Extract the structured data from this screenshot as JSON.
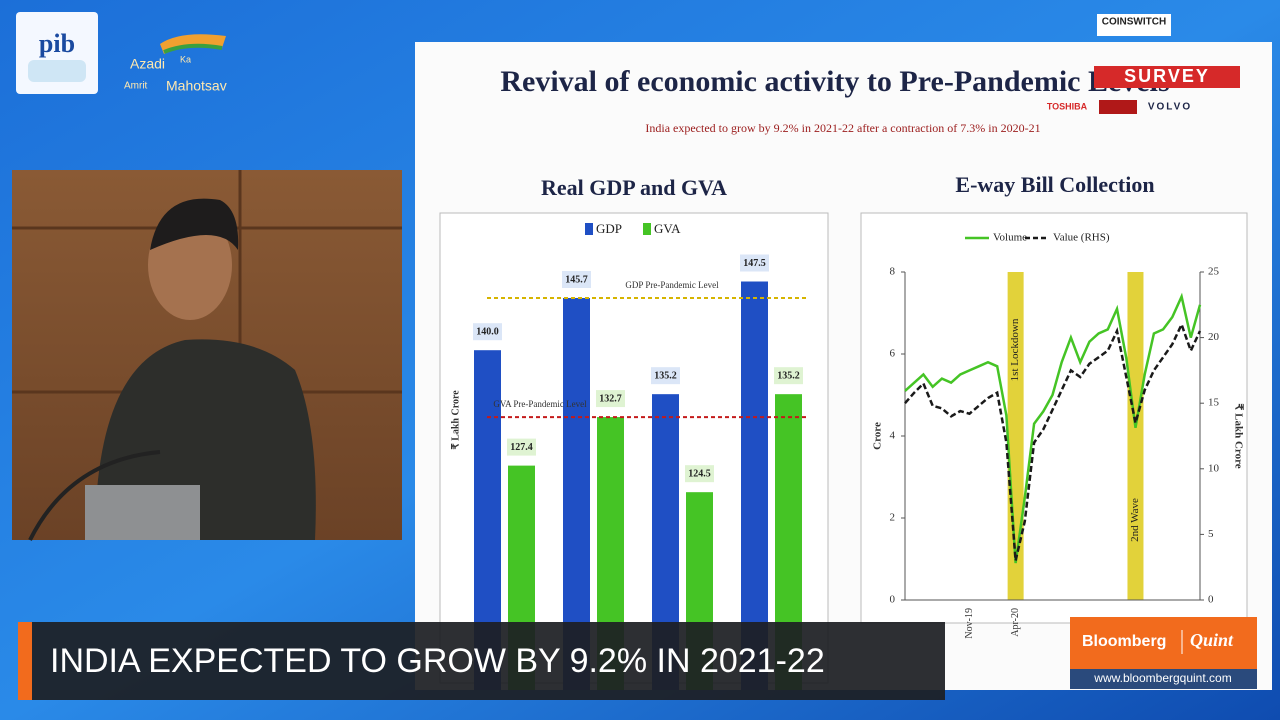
{
  "header": {
    "pib": "pib",
    "azadi": [
      "Azadi",
      "Ka",
      "Amrit",
      "Mahotsav"
    ],
    "sponsors": [
      "COINSWITCH",
      "SURVEY",
      "TOSHIBA",
      "VOLVO"
    ]
  },
  "slide": {
    "title": "Revival of economic activity to Pre-Pandemic Levels",
    "subtitle": "India expected to grow by 9.2% in 2021-22 after a contraction of 7.3% in 2020-21"
  },
  "chart_data": [
    {
      "type": "bar",
      "title": "Real GDP and GVA",
      "y_label": "₹ Lakh Crore",
      "categories": [
        null,
        null,
        null,
        null
      ],
      "series": [
        {
          "name": "GDP",
          "color": "#1f4fc4",
          "values": [
            140.0,
            145.7,
            135.2,
            147.5
          ],
          "value_labels": [
            "140.0",
            "145.7",
            "135.2",
            "147.5"
          ]
        },
        {
          "name": "GVA",
          "color": "#45c425",
          "values": [
            127.4,
            132.7,
            124.5,
            135.2
          ],
          "value_labels": [
            "127.4",
            "132.7",
            "124.5",
            "135.2"
          ]
        }
      ],
      "ylim": [
        110,
        150
      ],
      "reference_lines": [
        {
          "label": "GDP Pre-Pandemic Level",
          "value": 145.7,
          "color": "#d6b400"
        },
        {
          "label": "GVA Pre-Pandemic Level",
          "value": 132.7,
          "color": "#c41a1a"
        }
      ]
    },
    {
      "type": "line",
      "title": "E-way Bill Collection",
      "y_label": "Crore",
      "y2_label": "₹ Lakh Crore",
      "categories": [
        null,
        null,
        null,
        null,
        null,
        null,
        null,
        "Nov-19",
        null,
        null,
        null,
        null,
        "Apr-20",
        null,
        null,
        null,
        null,
        null,
        null,
        null,
        null,
        null,
        null,
        null,
        null,
        null,
        null,
        null,
        null,
        null,
        null,
        null,
        null
      ],
      "series": [
        {
          "name": "Volume",
          "color": "#45c425",
          "style": "solid",
          "values": [
            5.1,
            5.3,
            5.5,
            5.2,
            5.4,
            5.3,
            5.5,
            5.6,
            5.7,
            5.8,
            5.7,
            4.5,
            0.9,
            2.5,
            4.3,
            4.6,
            5.0,
            5.8,
            6.4,
            5.8,
            6.3,
            6.5,
            6.6,
            7.1,
            5.9,
            4.2,
            5.5,
            6.5,
            6.6,
            6.9,
            7.4,
            6.4,
            7.2
          ]
        },
        {
          "name": "Value (RHS)",
          "color": "#1a1a1a",
          "style": "dashed",
          "axis": "y2",
          "values": [
            15.0,
            15.8,
            16.5,
            14.8,
            14.6,
            14.0,
            14.4,
            14.2,
            14.8,
            15.4,
            15.8,
            12.0,
            3.0,
            6.0,
            12.0,
            13.0,
            14.5,
            16.0,
            17.5,
            17.0,
            18.0,
            18.5,
            19.0,
            20.5,
            17.0,
            13.5,
            16.0,
            17.5,
            18.5,
            19.5,
            21.0,
            19.0,
            20.5
          ]
        }
      ],
      "ylim": [
        0,
        8
      ],
      "yticks": [
        0,
        2,
        4,
        6,
        8
      ],
      "y2lim": [
        0,
        25
      ],
      "y2ticks": [
        0,
        5,
        10,
        15,
        20,
        25
      ],
      "shaded_regions": [
        {
          "label": "1st Lockdown",
          "at": 12,
          "color": "#e2d23a"
        },
        {
          "label": "2nd Wave",
          "at": 25,
          "color": "#e2d23a"
        }
      ]
    }
  ],
  "ticker": {
    "text": "INDIA EXPECTED TO GROW BY 9.2% IN 2021-22"
  },
  "brand": {
    "name": "Bloomberg",
    "sub": "Quint",
    "url": "www.bloombergquint.com"
  }
}
